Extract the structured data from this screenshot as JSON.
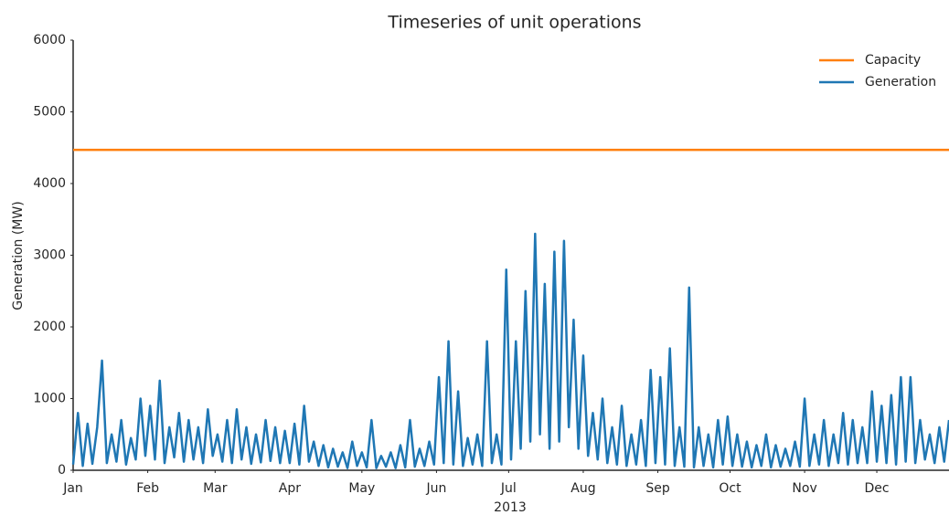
{
  "chart_data": {
    "type": "line",
    "title": "Timeseries of unit operations",
    "ylabel": "Generation (MW)",
    "xlabel": "2013",
    "xlim": [
      0,
      364
    ],
    "xticks": [
      {
        "value": 0,
        "label": "Jan"
      },
      {
        "value": 31,
        "label": "Feb"
      },
      {
        "value": 59,
        "label": "Mar"
      },
      {
        "value": 90,
        "label": "Apr"
      },
      {
        "value": 120,
        "label": "May"
      },
      {
        "value": 151,
        "label": "Jun"
      },
      {
        "value": 181,
        "label": "Jul"
      },
      {
        "value": 212,
        "label": "Aug"
      },
      {
        "value": 243,
        "label": "Sep"
      },
      {
        "value": 273,
        "label": "Oct"
      },
      {
        "value": 304,
        "label": "Nov"
      },
      {
        "value": 334,
        "label": "Dec"
      }
    ],
    "ylim": [
      0,
      6000
    ],
    "yticks": [
      0,
      1000,
      2000,
      3000,
      4000,
      5000,
      6000
    ],
    "legend": "upper right",
    "grid": false,
    "series": [
      {
        "name": "Capacity",
        "color": "#ff7f0e",
        "x": [
          0,
          364
        ],
        "values": [
          4470,
          4470
        ]
      },
      {
        "name": "Generation",
        "color": "#1f77b4",
        "x": [
          0,
          2,
          4,
          6,
          8,
          10,
          12,
          14,
          16,
          18,
          20,
          22,
          24,
          26,
          28,
          30,
          32,
          34,
          36,
          38,
          40,
          42,
          44,
          46,
          48,
          50,
          52,
          54,
          56,
          58,
          60,
          62,
          64,
          66,
          68,
          70,
          72,
          74,
          76,
          78,
          80,
          82,
          84,
          86,
          88,
          90,
          92,
          94,
          96,
          98,
          100,
          102,
          104,
          106,
          108,
          110,
          112,
          114,
          116,
          118,
          120,
          122,
          124,
          126,
          128,
          130,
          132,
          134,
          136,
          138,
          140,
          142,
          144,
          146,
          148,
          150,
          152,
          154,
          156,
          158,
          160,
          162,
          164,
          166,
          168,
          170,
          172,
          174,
          176,
          178,
          180,
          182,
          184,
          186,
          188,
          190,
          192,
          194,
          196,
          198,
          200,
          202,
          204,
          206,
          208,
          210,
          212,
          214,
          216,
          218,
          220,
          222,
          224,
          226,
          228,
          230,
          232,
          234,
          236,
          238,
          240,
          242,
          244,
          246,
          248,
          250,
          252,
          254,
          256,
          258,
          260,
          262,
          264,
          266,
          268,
          270,
          272,
          274,
          276,
          278,
          280,
          282,
          284,
          286,
          288,
          290,
          292,
          294,
          296,
          298,
          300,
          302,
          304,
          306,
          308,
          310,
          312,
          314,
          316,
          318,
          320,
          322,
          324,
          326,
          328,
          330,
          332,
          334,
          336,
          338,
          340,
          342,
          344,
          346,
          348,
          350,
          352,
          354,
          356,
          358,
          360,
          362,
          364
        ],
        "values": [
          80,
          800,
          60,
          650,
          90,
          600,
          1530,
          100,
          500,
          120,
          700,
          80,
          450,
          150,
          1000,
          200,
          900,
          150,
          1250,
          100,
          600,
          180,
          800,
          120,
          700,
          150,
          600,
          100,
          850,
          200,
          500,
          120,
          700,
          100,
          850,
          150,
          600,
          90,
          500,
          110,
          700,
          130,
          600,
          100,
          550,
          100,
          650,
          80,
          900,
          120,
          400,
          60,
          350,
          40,
          300,
          50,
          250,
          30,
          400,
          60,
          250,
          40,
          700,
          30,
          200,
          50,
          250,
          30,
          350,
          40,
          700,
          50,
          300,
          60,
          400,
          80,
          1300,
          100,
          1800,
          80,
          1100,
          60,
          450,
          80,
          500,
          60,
          1800,
          100,
          500,
          80,
          2800,
          150,
          1800,
          300,
          2500,
          400,
          3300,
          500,
          2600,
          300,
          3050,
          400,
          3200,
          600,
          2100,
          300,
          1600,
          200,
          800,
          150,
          1000,
          100,
          600,
          80,
          900,
          60,
          500,
          80,
          700,
          60,
          1400,
          100,
          1300,
          80,
          1700,
          60,
          600,
          50,
          2550,
          40,
          600,
          60,
          500,
          40,
          700,
          80,
          750,
          60,
          500,
          50,
          400,
          40,
          350,
          60,
          500,
          40,
          350,
          50,
          300,
          60,
          400,
          50,
          1000,
          60,
          500,
          80,
          700,
          60,
          500,
          100,
          800,
          80,
          700,
          100,
          600,
          100,
          1100,
          120,
          900,
          100,
          1050,
          80,
          1300,
          120,
          1300,
          100,
          700,
          150,
          500,
          100,
          600,
          120,
          700
        ]
      }
    ]
  }
}
